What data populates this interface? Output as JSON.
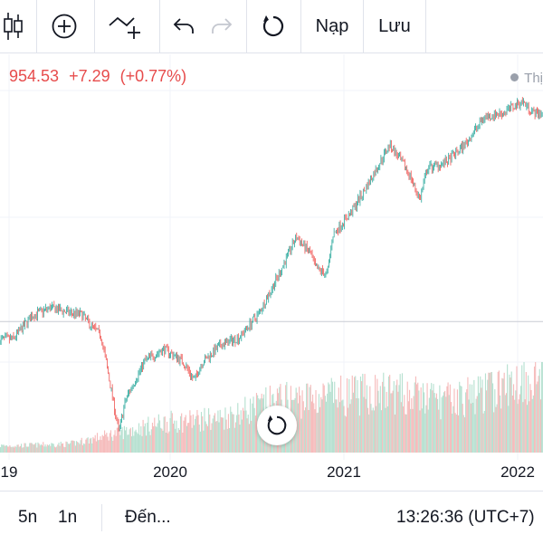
{
  "toolbar": {
    "load_label": "Nạp",
    "save_label": "Lưu"
  },
  "header": {
    "last_price": "954.53",
    "change": "+7.29",
    "change_pct": "(+0.77%)",
    "legend_label": "Thị"
  },
  "colors": {
    "up": "#26a69a",
    "down": "#ef5350",
    "up_volume": "#b7e1d1",
    "down_volume": "#f6bcbc",
    "price_text": "#e74c4c",
    "grid": "#f0f3fa",
    "crosshair": "#c8cbd3"
  },
  "chart_data": {
    "type": "candlestick",
    "x_ticks": [
      "19",
      "2020",
      "2021",
      "2022"
    ],
    "ylim": [
      640,
      1560
    ],
    "horizontal_line_value": 950,
    "price_path": [
      [
        "2019-10",
        905
      ],
      [
        "2019-11",
        965
      ],
      [
        "2019-12",
        985
      ],
      [
        "2020-01",
        972
      ],
      [
        "2020-01-20",
        968
      ],
      [
        "2020-02",
        945
      ],
      [
        "2020-02-20",
        915
      ],
      [
        "2020-03",
        835
      ],
      [
        "2020-03-20",
        670
      ],
      [
        "2020-04",
        755
      ],
      [
        "2020-05",
        850
      ],
      [
        "2020-06",
        880
      ],
      [
        "2020-07",
        850
      ],
      [
        "2020-07-20",
        800
      ],
      [
        "2020-08",
        845
      ],
      [
        "2020-09",
        890
      ],
      [
        "2020-10",
        910
      ],
      [
        "2020-11",
        970
      ],
      [
        "2020-12",
        1060
      ],
      [
        "2021-01",
        1165
      ],
      [
        "2021-01-25",
        1120
      ],
      [
        "2021-02",
        1085
      ],
      [
        "2021-02-20",
        1070
      ],
      [
        "2021-03",
        1170
      ],
      [
        "2021-04",
        1230
      ],
      [
        "2021-05",
        1310
      ],
      [
        "2021-06",
        1400
      ],
      [
        "2021-07",
        1330
      ],
      [
        "2021-07-20",
        1260
      ],
      [
        "2021-08",
        1340
      ],
      [
        "2021-09",
        1355
      ],
      [
        "2021-10",
        1400
      ],
      [
        "2021-11",
        1470
      ],
      [
        "2021-12",
        1480
      ],
      [
        "2022-01",
        1510
      ],
      [
        "2022-01-20",
        1480
      ]
    ],
    "volume_path": [
      [
        "2019-10",
        0.08
      ],
      [
        "2020-01",
        0.1
      ],
      [
        "2020-03",
        0.2
      ],
      [
        "2020-06",
        0.35
      ],
      [
        "2020-09",
        0.4
      ],
      [
        "2020-12",
        0.6
      ],
      [
        "2021-03",
        0.65
      ],
      [
        "2021-06",
        0.7
      ],
      [
        "2021-09",
        0.6
      ],
      [
        "2021-12",
        0.75
      ],
      [
        "2022-01",
        0.85
      ]
    ]
  },
  "bottombar": {
    "range_5y": "5n",
    "range_1y": "1n",
    "goto_label": "Đến...",
    "clock": "13:26:36 (UTC+7)"
  }
}
